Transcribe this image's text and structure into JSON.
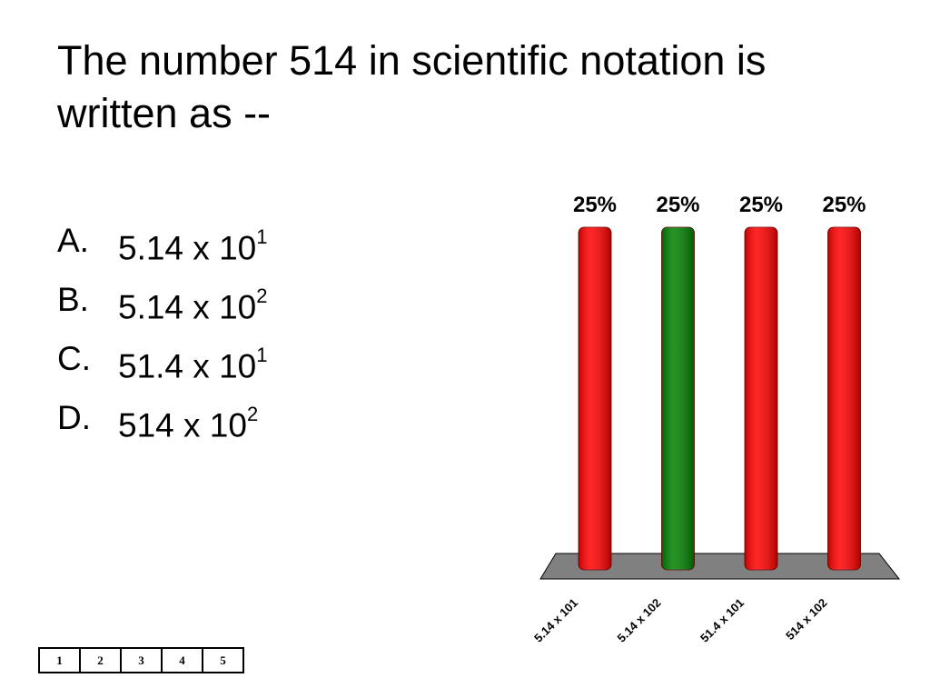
{
  "title": "The number 514 in scientific notation is written as --",
  "options": [
    {
      "letter": "A.",
      "text": "5.14 x 10",
      "sup": "1"
    },
    {
      "letter": "B.",
      "text": "5.14 x 10",
      "sup": "2"
    },
    {
      "letter": "C.",
      "text": "51.4 x 10",
      "sup": "1"
    },
    {
      "letter": "D.",
      "text": "514 x 10",
      "sup": "2"
    }
  ],
  "chart_data": {
    "type": "bar",
    "categories": [
      "5.14 x 101",
      "5.14 x 102",
      "51.4 x 101",
      "514 x 102"
    ],
    "values": [
      25,
      25,
      25,
      25
    ],
    "value_labels": [
      "25%",
      "25%",
      "25%",
      "25%"
    ],
    "colors": [
      "#ff0000",
      "#008000",
      "#ff0000",
      "#ff0000"
    ]
  },
  "counter": [
    "1",
    "2",
    "3",
    "4",
    "5"
  ]
}
